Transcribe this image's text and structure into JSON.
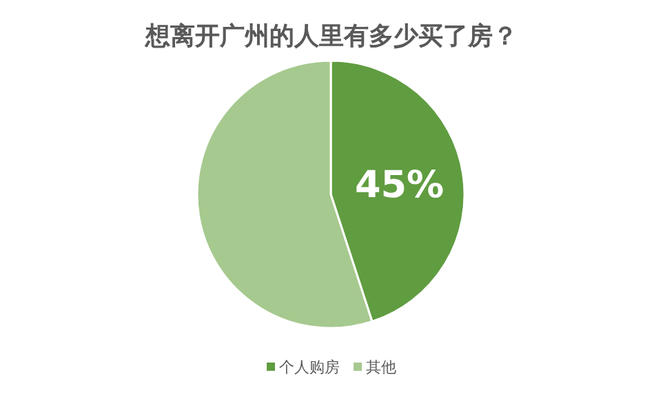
{
  "chart_data": {
    "type": "pie",
    "title": "想离开广州的人里有多少买了房？",
    "categories": [
      "个人购房",
      "其他"
    ],
    "values": [
      45,
      55
    ],
    "colors": [
      "#609c40",
      "#a6c98f"
    ],
    "value_labels": [
      "45%",
      null
    ],
    "legend": "bottom"
  }
}
